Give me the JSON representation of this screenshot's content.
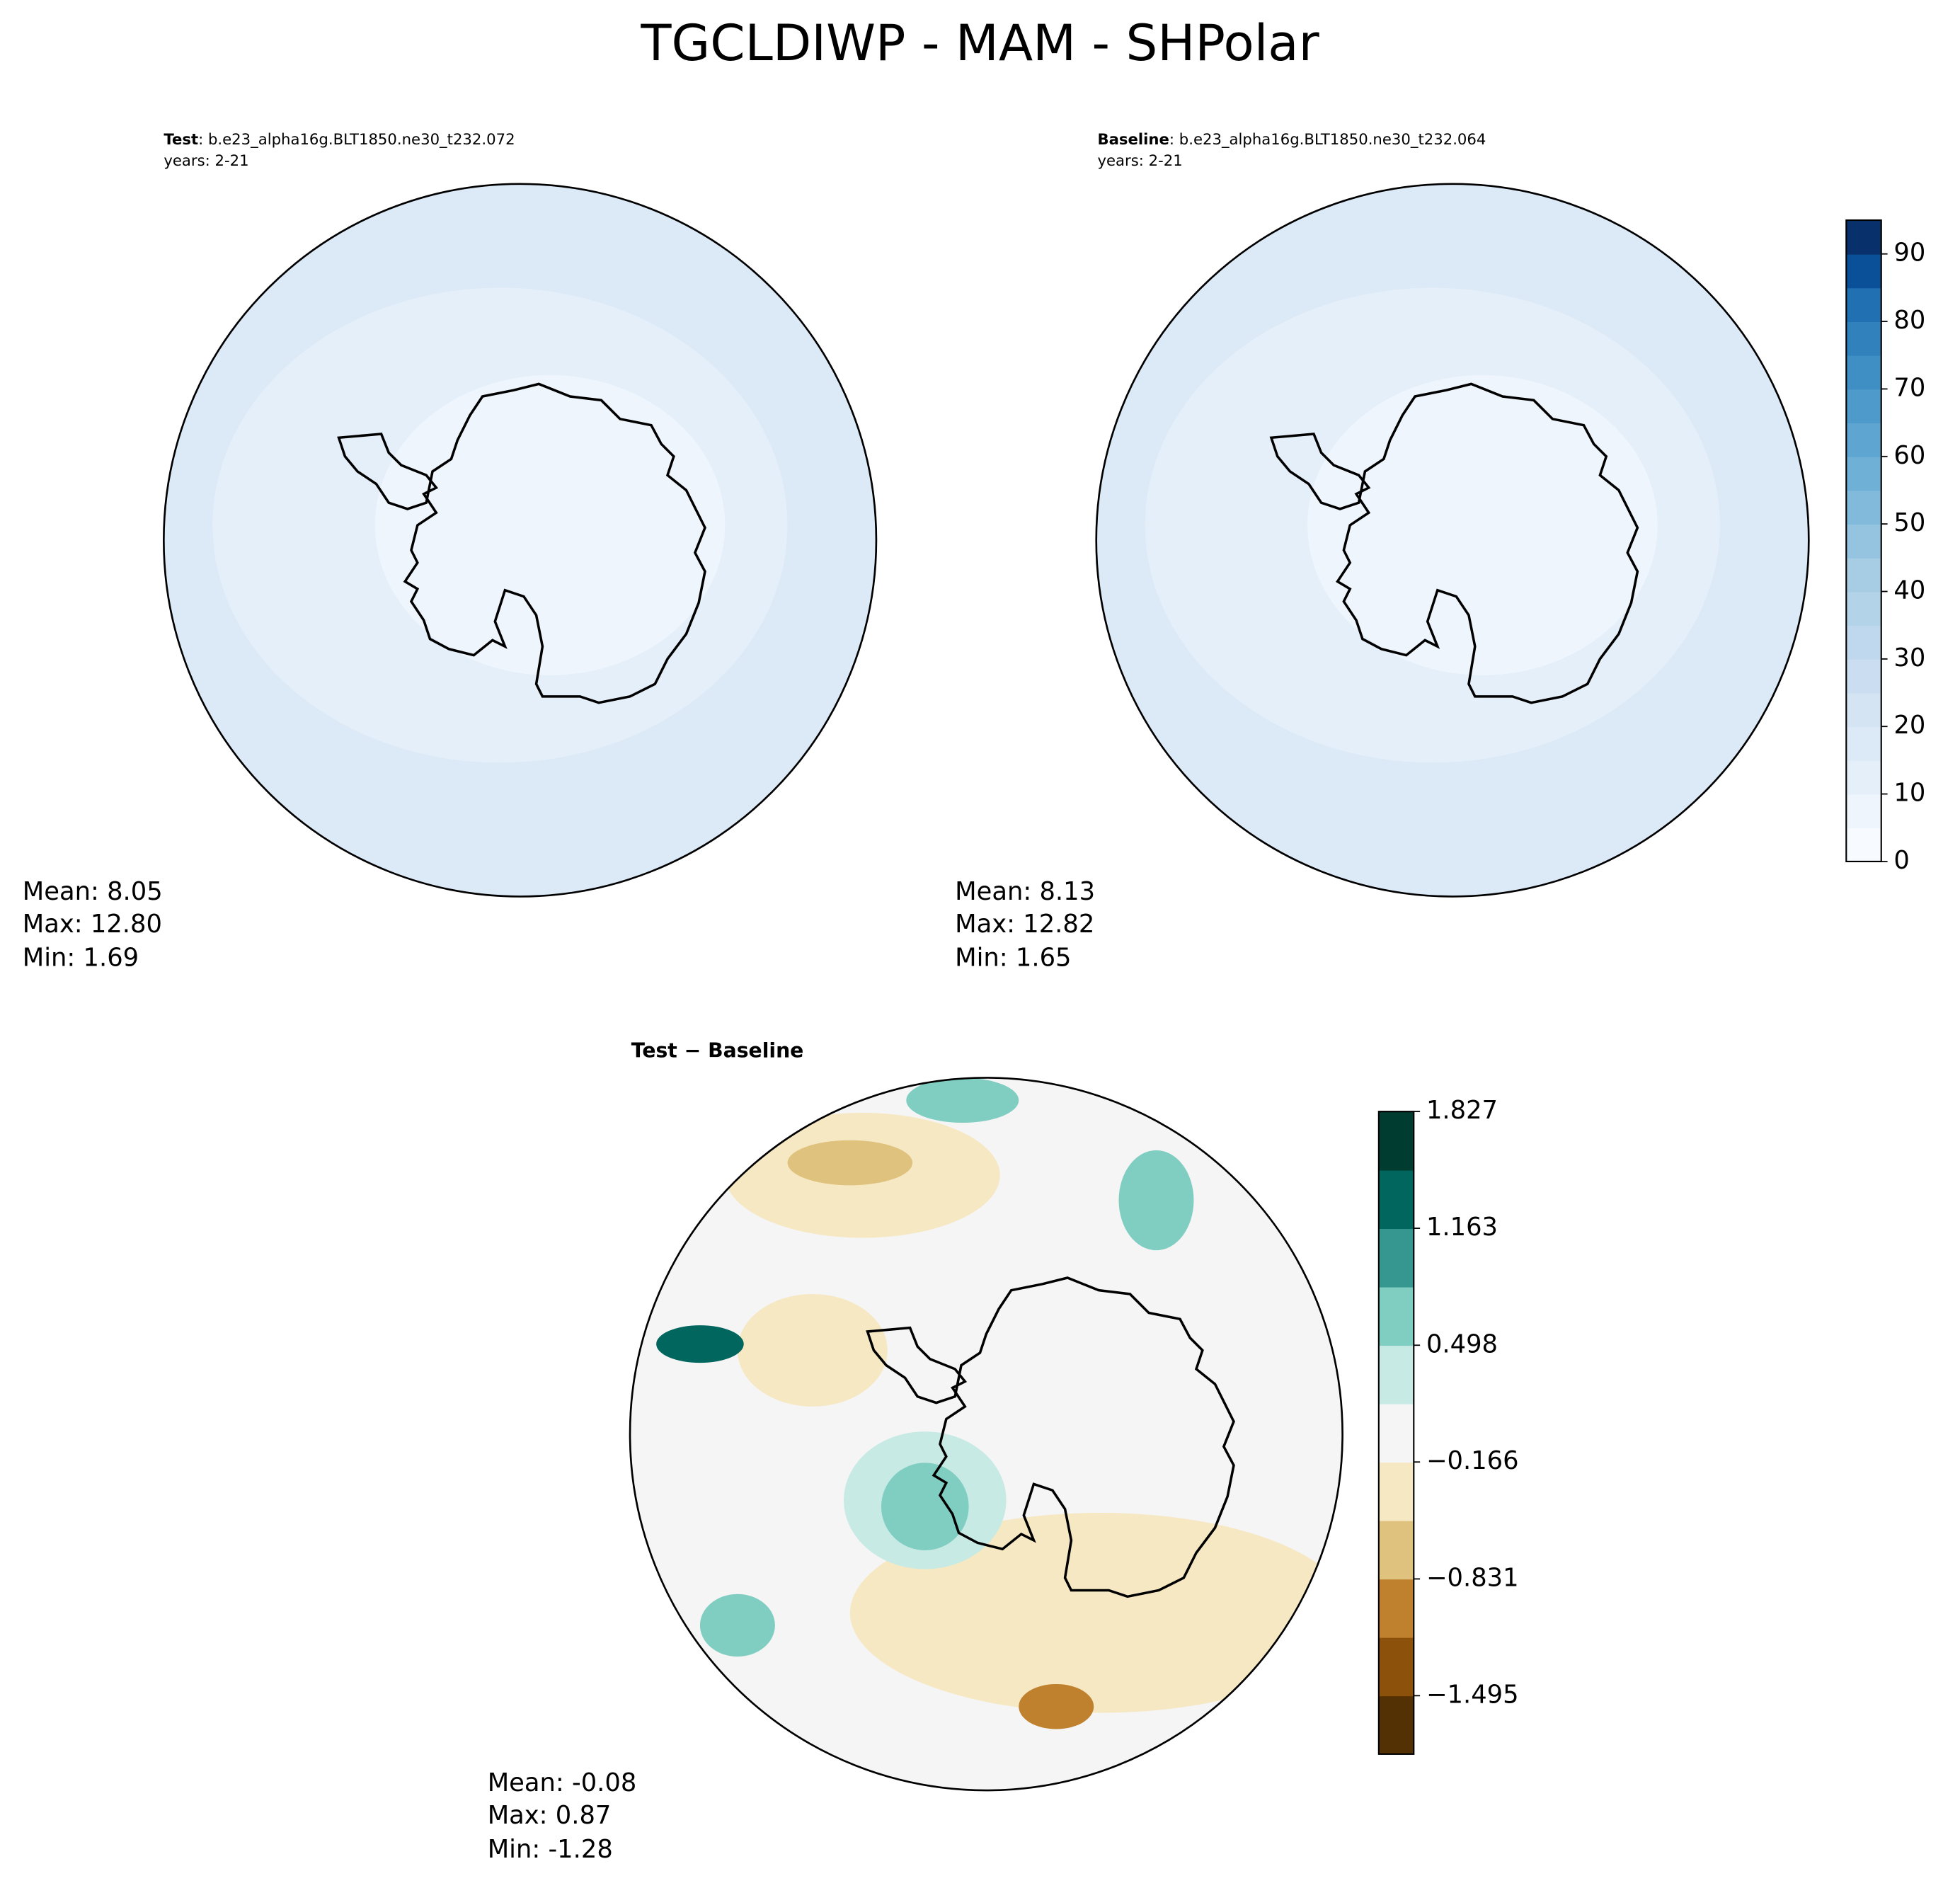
{
  "title": "TGCLDIWP - MAM - SHPolar",
  "panels": [
    {
      "label": "Test",
      "desc": ": b.e23_alpha16g.BLT1850.ne30_t232.072",
      "years": "years: 2-21",
      "stats": [
        "Mean:  8.05",
        "Max: 12.80",
        "Min:  1.69"
      ]
    },
    {
      "label": "Baseline",
      "desc": ": b.e23_alpha16g.BLT1850.ne30_t232.064",
      "years": "years: 2-21",
      "stats": [
        "Mean:  8.13",
        "Max: 12.82",
        "Min:  1.65"
      ]
    },
    {
      "label": "Test − Baseline",
      "stats": [
        "Mean: -0.08",
        "Max:  0.87",
        "Min: -1.28"
      ]
    }
  ],
  "colorbars": [
    {
      "lim": [
        0,
        95
      ],
      "ticks": [
        0,
        10,
        20,
        30,
        40,
        50,
        60,
        70,
        80,
        90
      ],
      "colors": [
        "#f7fbff",
        "#eef5fc",
        "#e5eff9",
        "#dce9f6",
        "#d4e4f3",
        "#cbdef1",
        "#c0d8ed",
        "#b3d3e8",
        "#a6cde3",
        "#94c4df",
        "#82badb",
        "#6fb0d7",
        "#5ea5d1",
        "#4e9acb",
        "#3f8fc4",
        "#3181bd",
        "#2170b2",
        "#0a5099",
        "#08306b"
      ]
    },
    {
      "lim": [
        -1.827,
        1.827
      ],
      "ticks": [
        {
          "value": -1.495,
          "label": "−1.495"
        },
        {
          "value": -0.831,
          "label": "−0.831"
        },
        {
          "value": -0.166,
          "label": "−0.166"
        },
        0.498,
        1.163,
        1.827
      ],
      "colors": [
        "#543005",
        "#8c510a",
        "#bf812d",
        "#dfc27d",
        "#f6e8c3",
        "#f5f5f5",
        "#c7eae5",
        "#80cdc1",
        "#35978f",
        "#01665e",
        "#003c30"
      ]
    }
  ]
}
